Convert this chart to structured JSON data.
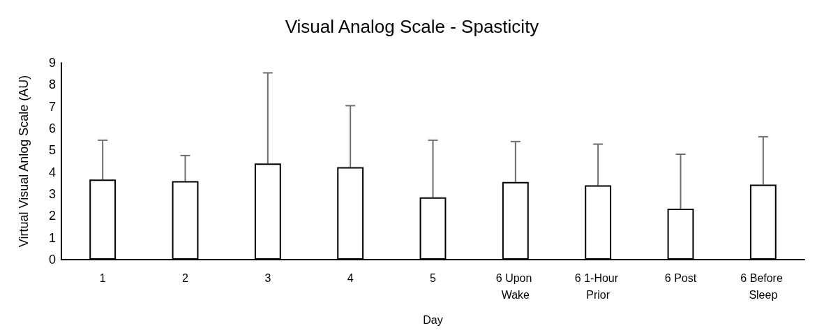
{
  "chart_data": {
    "type": "bar",
    "title": "Visual Analog Scale - Spasticity",
    "xlabel": "Day",
    "ylabel": "Virtual Visual Anlog Scale (AU)",
    "categories": [
      "1",
      "2",
      "3",
      "4",
      "5",
      "6 Upon Wake",
      "6 1-Hour Prior",
      "6 Post",
      "6 Before Sleep"
    ],
    "values": [
      3.66,
      3.59,
      4.4,
      4.23,
      2.85,
      3.55,
      3.4,
      2.33,
      3.43
    ],
    "errors": [
      [
        3.66,
        5.46
      ],
      [
        3.59,
        4.76
      ],
      [
        4.4,
        8.54
      ],
      [
        4.23,
        7.04
      ],
      [
        2.85,
        5.46
      ],
      [
        3.55,
        5.4
      ],
      [
        3.4,
        5.28
      ],
      [
        2.33,
        4.82
      ],
      [
        3.43,
        5.62
      ]
    ],
    "color": "#ffffff",
    "ylim": [
      0,
      9
    ],
    "yticks": [
      0,
      1,
      2,
      3,
      4,
      5,
      6,
      7,
      8,
      9
    ],
    "grid": false
  }
}
